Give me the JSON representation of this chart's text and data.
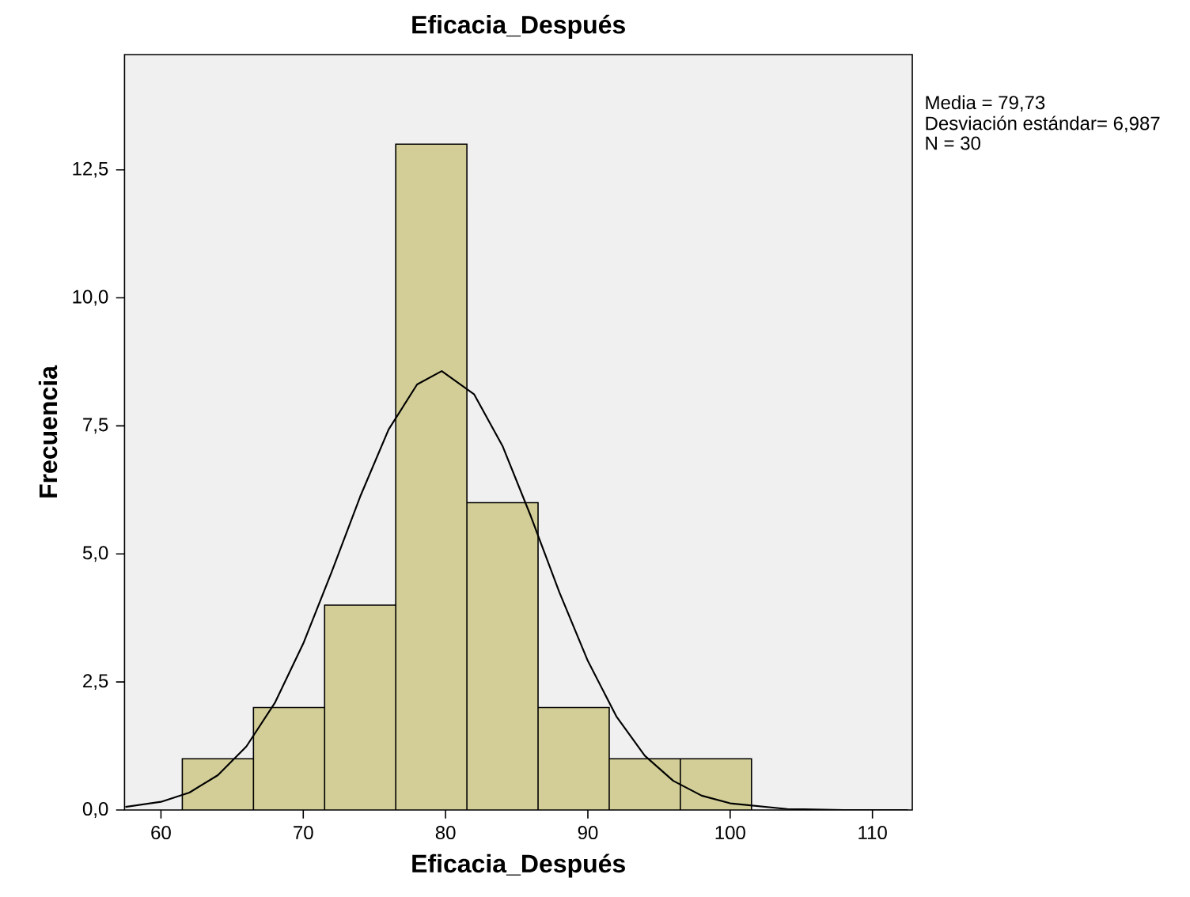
{
  "chart_data": {
    "type": "histogram",
    "title": "Eficacia_Después",
    "xlabel": "Eficacia_Después",
    "ylabel": "Frecuencia",
    "annotations": [
      "Media = 79,73",
      "Desviación estándar= 6,987",
      "N = 30"
    ],
    "series": [
      {
        "bins": [
          61.5,
          66.5,
          71.5,
          76.5,
          81.5,
          86.5,
          91.5,
          96.5,
          101.5
        ],
        "values": [
          1,
          2,
          4,
          13,
          6,
          2,
          1,
          1
        ],
        "color": "#d3ce97"
      },
      {
        "type": "line",
        "color": "#000000",
        "x": [
          57.5,
          60,
          62,
          64,
          66,
          68,
          70,
          72,
          74,
          76,
          78,
          79.73,
          82,
          84,
          86,
          88,
          90,
          92,
          94,
          96,
          98,
          100,
          104,
          108,
          112.5
        ],
        "values": [
          0.06,
          0.16,
          0.34,
          0.68,
          1.24,
          2.09,
          3.25,
          4.65,
          6.12,
          7.43,
          8.31,
          8.57,
          8.12,
          7.11,
          5.73,
          4.25,
          2.91,
          1.83,
          1.06,
          0.57,
          0.28,
          0.13,
          0.02,
          0,
          0
        ]
      }
    ],
    "xlim": [
      57.44,
      112.8
    ],
    "ylim": [
      0,
      14.75
    ],
    "xticks": [
      60,
      70,
      80,
      90,
      100,
      110
    ],
    "yticks": [
      {
        "value": 0,
        "label": "0,0"
      },
      {
        "value": 2.5,
        "label": "2,5"
      },
      {
        "value": 5,
        "label": "5,0"
      },
      {
        "value": 7.5,
        "label": "7,5"
      },
      {
        "value": 10,
        "label": "10,0"
      },
      {
        "value": 12.5,
        "label": "12,5"
      }
    ]
  }
}
